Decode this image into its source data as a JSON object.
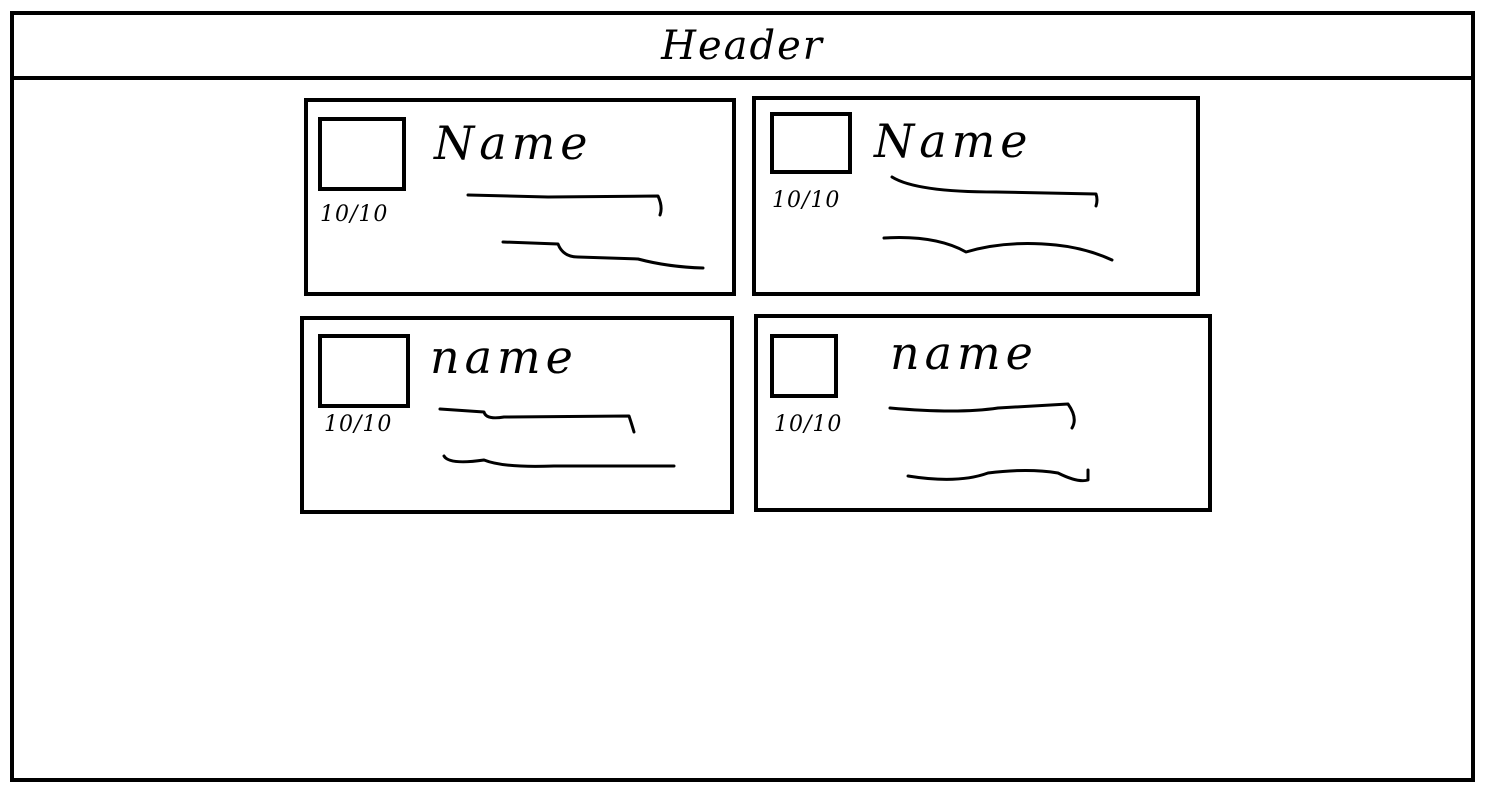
{
  "header": {
    "title": "Header"
  },
  "cards": [
    {
      "name": "Name",
      "rating": "10/10"
    },
    {
      "name": "Name",
      "rating": "10/10"
    },
    {
      "name": "name",
      "rating": "10/10"
    },
    {
      "name": "name",
      "rating": "10/10"
    }
  ]
}
